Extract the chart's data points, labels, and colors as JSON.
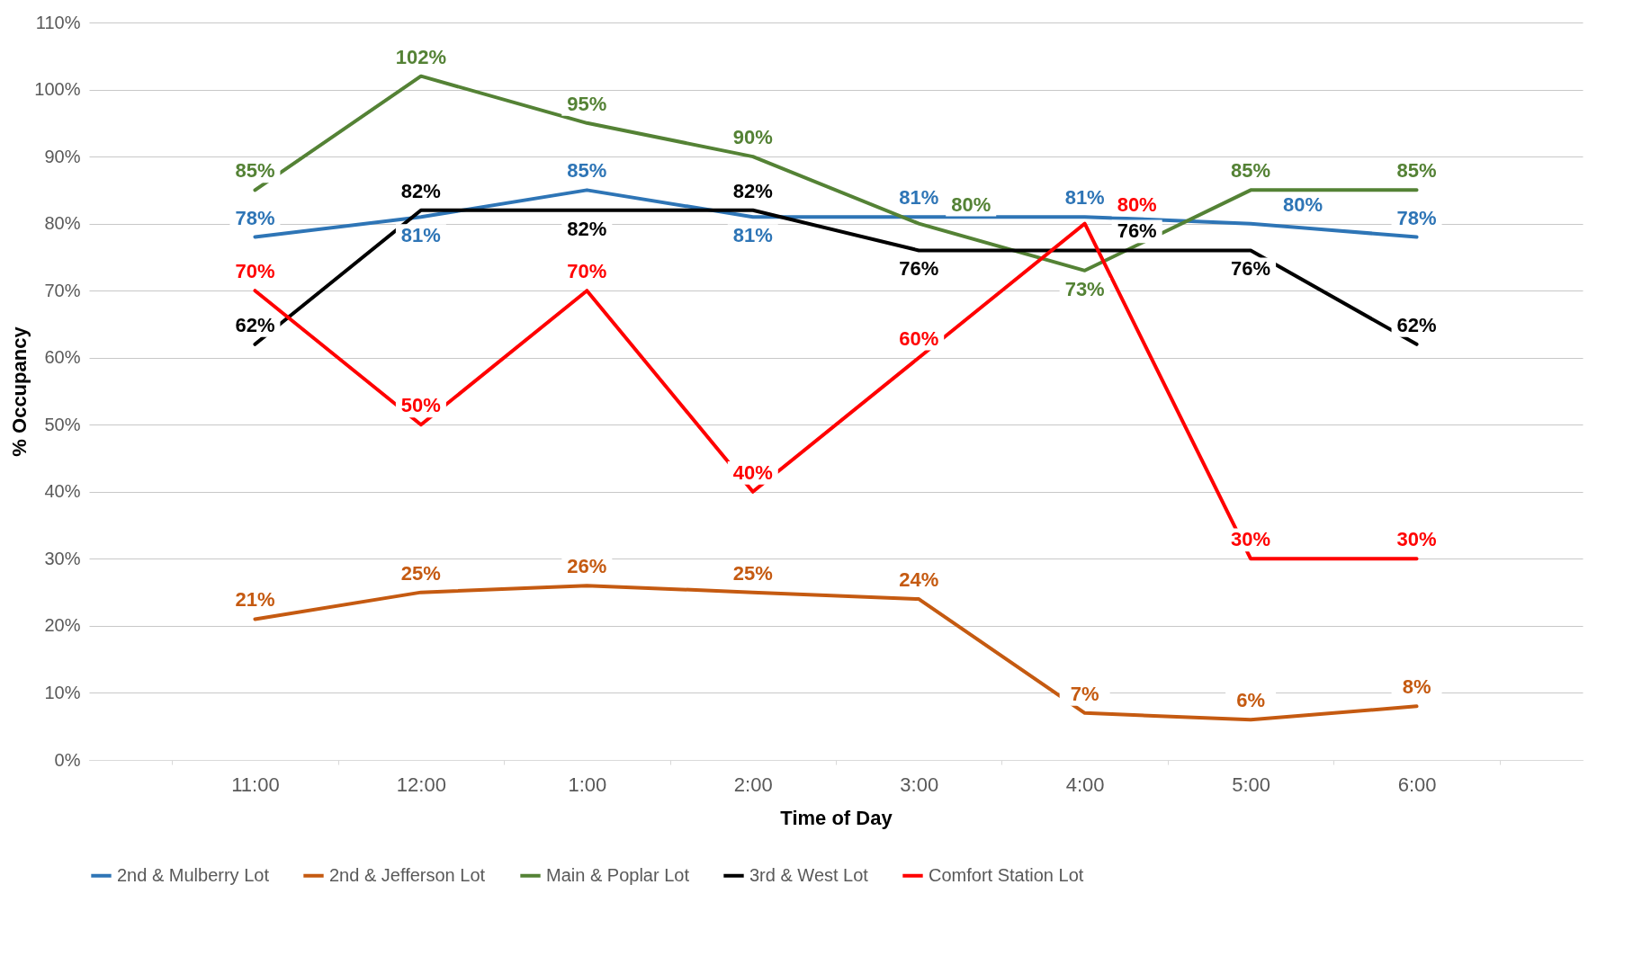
{
  "chart_data": {
    "type": "line",
    "xlabel": "Time of Day",
    "ylabel": "% Occupancy",
    "categories": [
      "11:00",
      "12:00",
      "1:00",
      "2:00",
      "3:00",
      "4:00",
      "5:00",
      "6:00"
    ],
    "series": [
      {
        "name": "2nd & Mulberry Lot",
        "color": "#2e75b6",
        "values": [
          78,
          81,
          85,
          81,
          81,
          81,
          80,
          78
        ],
        "value_labels": [
          "78%",
          "81%",
          "85%",
          "81%",
          "81%",
          "81%",
          "80%",
          "78%"
        ]
      },
      {
        "name": "2nd & Jefferson Lot",
        "color": "#c55a11",
        "values": [
          21,
          25,
          26,
          25,
          24,
          7,
          6,
          8
        ],
        "value_labels": [
          "21%",
          "25%",
          "26%",
          "25%",
          "24%",
          "7%",
          "6%",
          "8%"
        ]
      },
      {
        "name": "Main & Poplar Lot",
        "color": "#548235",
        "values": [
          85,
          102,
          95,
          90,
          80,
          73,
          85,
          85
        ],
        "value_labels": [
          "85%",
          "102%",
          "95%",
          "90%",
          "80%",
          "73%",
          "85%",
          "85%"
        ]
      },
      {
        "name": "3rd & West Lot",
        "color": "#000000",
        "values": [
          62,
          82,
          82,
          82,
          76,
          76,
          76,
          62
        ],
        "value_labels": [
          "62%",
          "82%",
          "82%",
          "82%",
          "76%",
          "76%",
          "76%",
          "62%"
        ]
      },
      {
        "name": "Comfort Station Lot",
        "color": "#ff0000",
        "values": [
          70,
          50,
          70,
          40,
          60,
          80,
          30,
          30
        ],
        "value_labels": [
          "70%",
          "50%",
          "70%",
          "40%",
          "60%",
          "80%",
          "30%",
          "30%"
        ]
      }
    ],
    "ylim": [
      0,
      110
    ],
    "yticks": [
      {
        "value": 0,
        "label": "0%"
      },
      {
        "value": 10,
        "label": "10%"
      },
      {
        "value": 20,
        "label": "20%"
      },
      {
        "value": 30,
        "label": "30%"
      },
      {
        "value": 40,
        "label": "40%"
      },
      {
        "value": 50,
        "label": "50%"
      },
      {
        "value": 60,
        "label": "60%"
      },
      {
        "value": 70,
        "label": "70%"
      },
      {
        "value": 80,
        "label": "80%"
      },
      {
        "value": 90,
        "label": "90%"
      },
      {
        "value": 100,
        "label": "100%"
      },
      {
        "value": 110,
        "label": "110%"
      }
    ],
    "grid": "y",
    "legend": "bottom",
    "marker": "none",
    "line_style": "solid"
  }
}
